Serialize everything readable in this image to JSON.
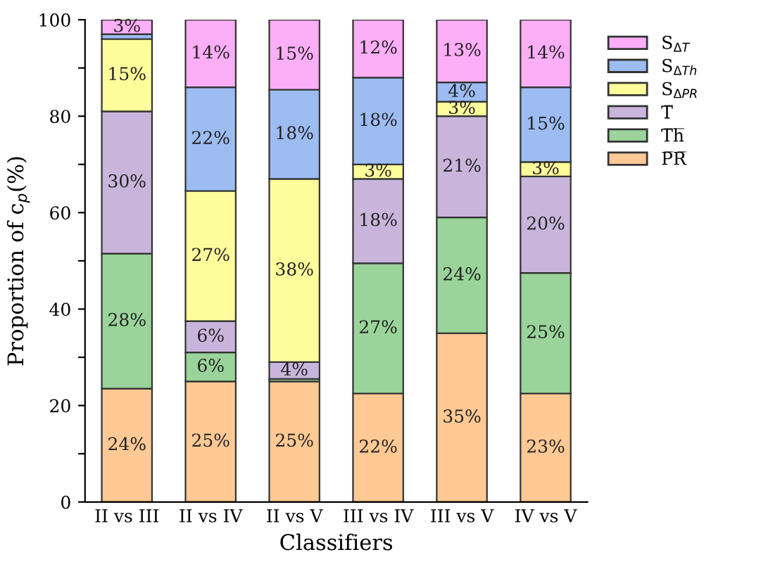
{
  "chart_data": {
    "type": "bar",
    "stacked": true,
    "xlabel": "Classifiers",
    "ylabel": "Proportion of c$_{p}$(%)",
    "categories": [
      "II vs III",
      "II vs IV",
      "II vs V",
      "III vs IV",
      "III vs V",
      "IV vs V"
    ],
    "series": [
      {
        "name": "P̅R̅",
        "color": "#fec994",
        "values": [
          23.5,
          25,
          25,
          22.5,
          35,
          22.5
        ],
        "value_labels": [
          "24%",
          "25%",
          "25%",
          "22%",
          "35%",
          "23%"
        ]
      },
      {
        "name": "T̅h̅",
        "color": "#9ad49a",
        "values": [
          28,
          6,
          0.5,
          27,
          24,
          25
        ],
        "value_labels": [
          "28%",
          "6%",
          null,
          "27%",
          "24%",
          "25%"
        ]
      },
      {
        "name": "T̅",
        "color": "#c9b5db",
        "values": [
          29.5,
          6.5,
          3.5,
          17.5,
          21,
          20
        ],
        "value_labels": [
          "30%",
          "6%",
          "4%",
          "18%",
          "21%",
          "20%"
        ]
      },
      {
        "name": "S$_{ΔPR}$",
        "color": "#fdfd9c",
        "values": [
          15,
          27,
          38,
          3,
          3,
          3
        ],
        "value_labels": [
          "15%",
          "27%",
          "38%",
          "3%",
          "3%",
          "3%"
        ]
      },
      {
        "name": "S$_{ΔTh}$",
        "color": "#9cbcf2",
        "values": [
          1,
          21.5,
          18.5,
          18,
          4,
          15.5
        ],
        "value_labels": [
          null,
          "22%",
          "18%",
          "18%",
          "4%",
          "15%"
        ]
      },
      {
        "name": "S$_{ΔT}$",
        "color": "#fcaef7",
        "values": [
          3,
          14,
          14.5,
          12,
          13,
          14
        ],
        "value_labels": [
          "3%",
          "14%",
          "15%",
          "12%",
          "13%",
          "14%"
        ]
      }
    ],
    "ylim": [
      0,
      100
    ],
    "yticks": [
      0,
      {
        "value": 10,
        "label": null
      },
      20,
      {
        "value": 30,
        "label": null
      },
      40,
      {
        "value": 50,
        "label": null
      },
      60,
      {
        "value": 70,
        "label": null
      },
      80,
      {
        "value": 90,
        "label": null
      },
      100
    ],
    "grid": false,
    "legend": "top right"
  }
}
